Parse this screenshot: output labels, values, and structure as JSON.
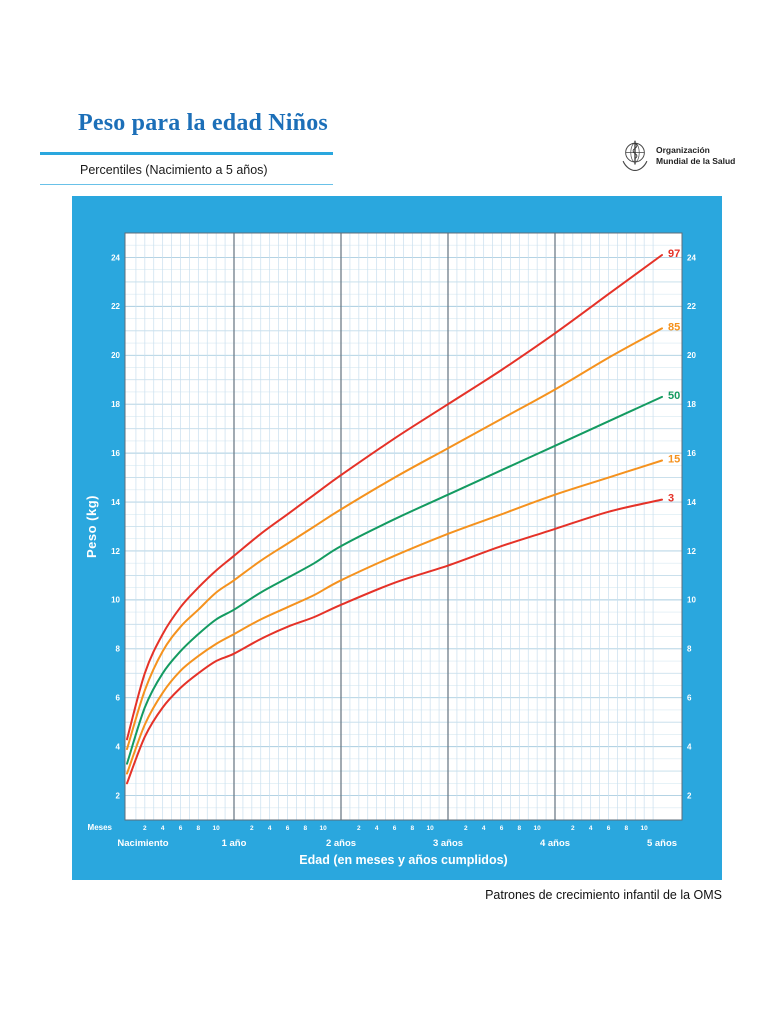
{
  "header": {
    "title": "Peso para la edad Niños",
    "subtitle": "Percentiles (Nacimiento a 5 años)",
    "logo_line1": "Organización",
    "logo_line2": "Mundial de la Salud"
  },
  "footer": {
    "note": "Patrones de crecimiento infantil de la OMS"
  },
  "colors": {
    "title": "#1c6fb8",
    "underline": "#2aa7de",
    "panel": "#2aa7de",
    "axis_text": "#ffffff",
    "red": "#e53228",
    "orange": "#f5921e",
    "green": "#149b61"
  },
  "chart_data": {
    "type": "line",
    "title": "Peso para la edad Niños",
    "subtitle": "Percentiles (Nacimiento a 5 años)",
    "xlabel": "Edad (en meses y años cumplidos)",
    "ylabel": "Peso (kg)",
    "x_unit_label": "Meses",
    "xlim_months": [
      0,
      60
    ],
    "ylim": [
      2,
      24
    ],
    "grid": true,
    "legend_position": "curve-end-labels-right",
    "y_ticks": [
      2,
      4,
      6,
      8,
      10,
      12,
      14,
      16,
      18,
      20,
      22,
      24
    ],
    "x_minor_labels": [
      "2",
      "4",
      "6",
      "8",
      "10"
    ],
    "x_year_labels": [
      "Nacimiento",
      "1 año",
      "2 años",
      "3 años",
      "4 años",
      "5 años"
    ],
    "x_months": [
      0,
      2,
      4,
      6,
      8,
      10,
      12,
      15,
      18,
      21,
      24,
      30,
      36,
      42,
      48,
      54,
      60
    ],
    "series": [
      {
        "name": "97",
        "color": "#e53228",
        "values": [
          4.3,
          7.0,
          8.6,
          9.7,
          10.5,
          11.2,
          11.8,
          12.7,
          13.5,
          14.3,
          15.1,
          16.6,
          18.0,
          19.4,
          20.9,
          22.5,
          24.1
        ]
      },
      {
        "name": "85",
        "color": "#f5921e",
        "values": [
          3.9,
          6.3,
          7.9,
          8.9,
          9.6,
          10.3,
          10.8,
          11.6,
          12.3,
          13.0,
          13.7,
          15.0,
          16.2,
          17.4,
          18.6,
          19.9,
          21.1
        ]
      },
      {
        "name": "50",
        "color": "#149b61",
        "values": [
          3.3,
          5.6,
          7.0,
          7.9,
          8.6,
          9.2,
          9.6,
          10.3,
          10.9,
          11.5,
          12.2,
          13.3,
          14.3,
          15.3,
          16.3,
          17.3,
          18.3
        ]
      },
      {
        "name": "15",
        "color": "#f5921e",
        "values": [
          2.9,
          4.9,
          6.2,
          7.1,
          7.7,
          8.2,
          8.6,
          9.2,
          9.7,
          10.2,
          10.8,
          11.8,
          12.7,
          13.5,
          14.3,
          15.0,
          15.7
        ]
      },
      {
        "name": "3",
        "color": "#e53228",
        "values": [
          2.5,
          4.4,
          5.6,
          6.4,
          7.0,
          7.5,
          7.8,
          8.4,
          8.9,
          9.3,
          9.8,
          10.7,
          11.4,
          12.2,
          12.9,
          13.6,
          14.1
        ]
      }
    ]
  }
}
